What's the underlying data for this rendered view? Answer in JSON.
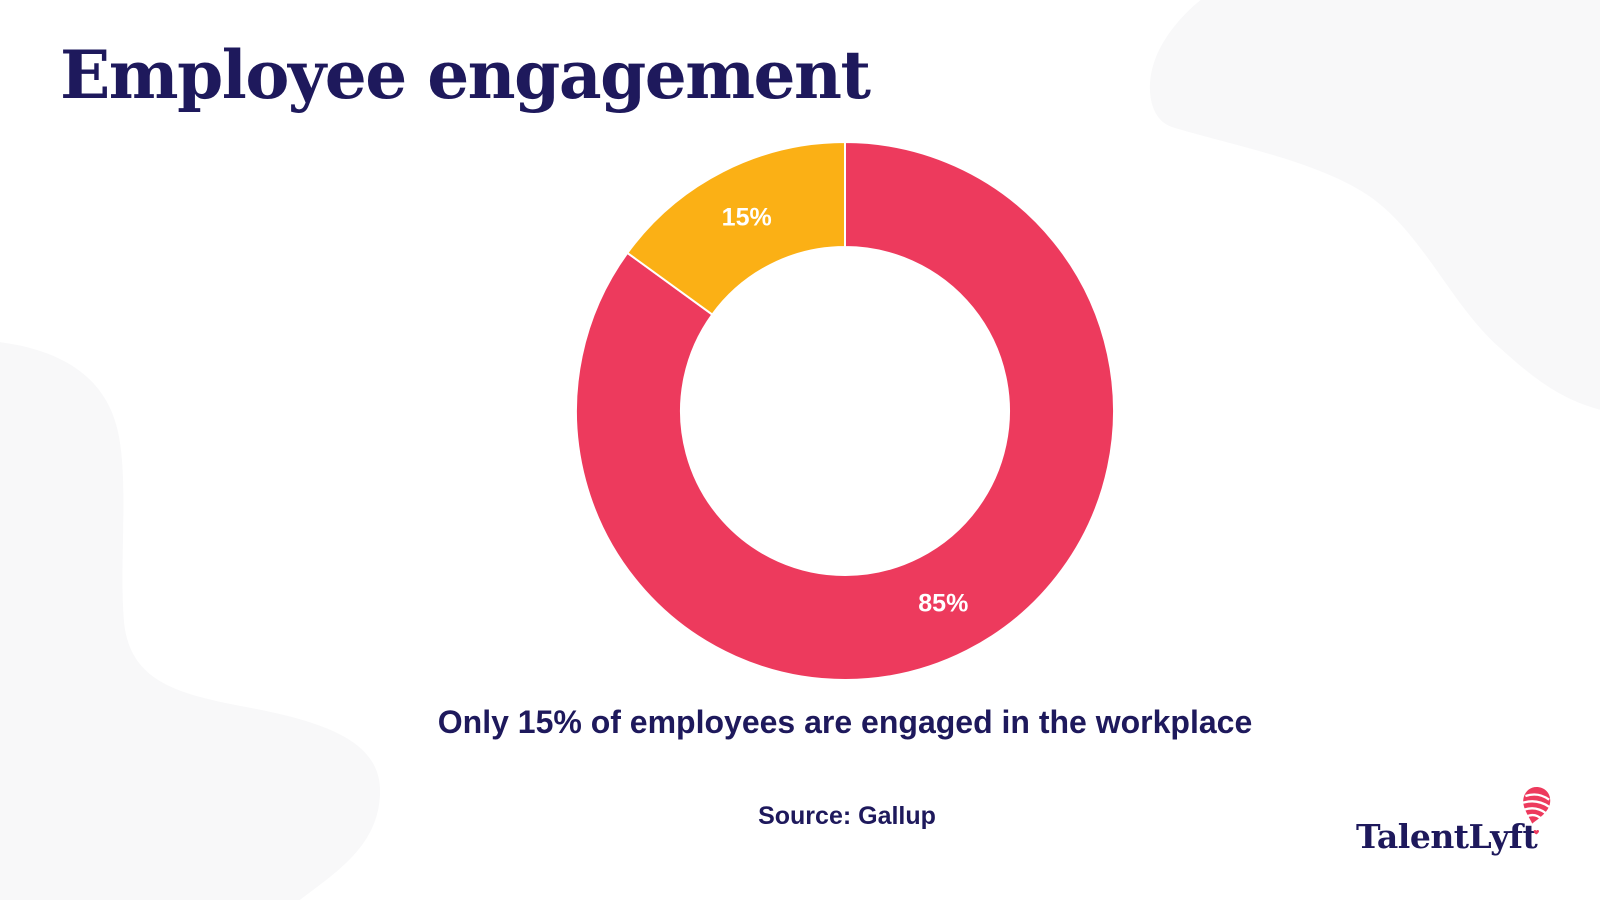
{
  "page": {
    "title": "Employee engagement",
    "caption": "Only 15% of employees are engaged in the workplace",
    "source": "Source: Gallup",
    "brand": "TalentLyft"
  },
  "colors": {
    "navy": "#1e195c",
    "pink": "#ed3a5d",
    "yellow": "#fbb015",
    "background": "#ffffff",
    "blob": "#f8f8f9",
    "segment_label": "#ffffff"
  },
  "chart_data": {
    "type": "pie",
    "variant": "donut",
    "title": "Employee engagement",
    "labels": [
      "85%",
      "15%"
    ],
    "values": [
      85,
      15
    ],
    "unit": "%",
    "colors": [
      "#ed3a5d",
      "#fbb015"
    ],
    "start_angle_deg": 0,
    "direction": "clockwise",
    "inner_radius_ratio": 0.61,
    "legend": "none",
    "annotation": "Only 15% of employees are engaged in the workplace",
    "source": "Source: Gallup"
  }
}
